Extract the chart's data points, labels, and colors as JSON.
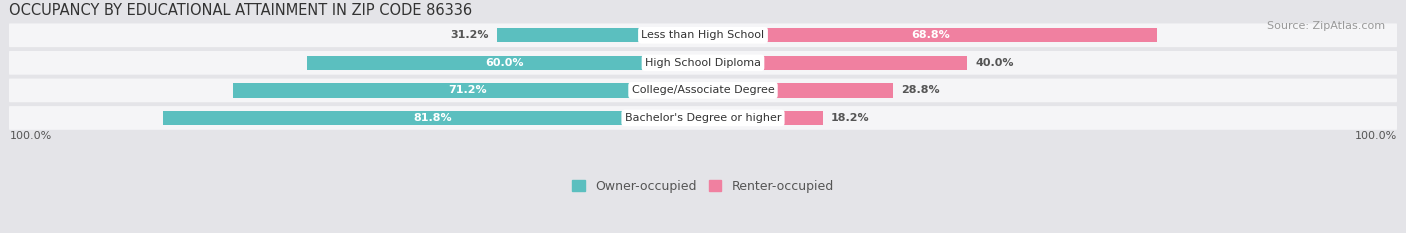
{
  "title": "OCCUPANCY BY EDUCATIONAL ATTAINMENT IN ZIP CODE 86336",
  "source": "Source: ZipAtlas.com",
  "categories": [
    "Less than High School",
    "High School Diploma",
    "College/Associate Degree",
    "Bachelor's Degree or higher"
  ],
  "owner_pct": [
    31.2,
    60.0,
    71.2,
    81.8
  ],
  "renter_pct": [
    68.8,
    40.0,
    28.8,
    18.2
  ],
  "owner_color": "#5bbfbf",
  "renter_color": "#f080a0",
  "bg_color": "#e4e4e8",
  "row_bg_color": "#f5f5f7",
  "title_fontsize": 10.5,
  "source_fontsize": 8,
  "label_fontsize": 8.0,
  "value_fontsize": 8.0,
  "legend_fontsize": 9,
  "axis_label_left": "100.0%",
  "axis_label_right": "100.0%",
  "legend_owner": "Owner-occupied",
  "legend_renter": "Renter-occupied",
  "owner_label_inside_threshold": 40,
  "renter_label_inside_threshold": 50
}
